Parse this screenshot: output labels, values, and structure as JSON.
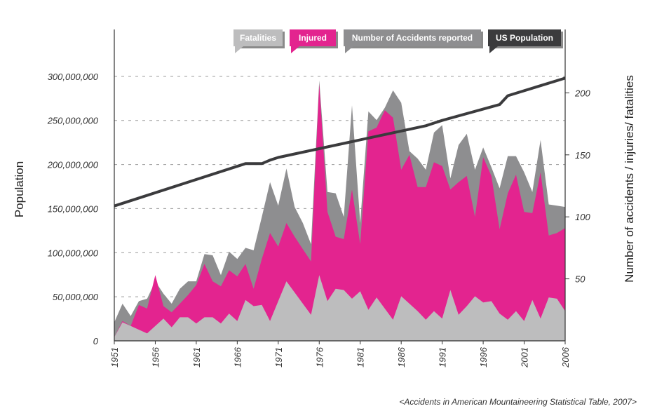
{
  "chart_data": {
    "type": "area",
    "source": "<Accidents in American Mountaineering Statistical Table, 2007>",
    "xlabel": "",
    "ylabel_left": "Population",
    "ylabel_right": "Number of accidents / injuries/ fatalities",
    "x_ticks": [
      "1951",
      "1956",
      "1961",
      "1966",
      "1971",
      "1976",
      "1981",
      "1986",
      "1991",
      "1996",
      "2001",
      "2006"
    ],
    "left_ticks": [
      "0",
      "50,000,000",
      "100,000,000",
      "150,000,000",
      "200,000,000",
      "250,000,000",
      "300,000,000"
    ],
    "left_tick_values": [
      0,
      50000000,
      100000000,
      150000000,
      200000000,
      250000000,
      300000000
    ],
    "right_ticks": [
      "50",
      "100",
      "150",
      "200"
    ],
    "right_tick_values": [
      50,
      100,
      150,
      200
    ],
    "ylim_left": [
      0,
      350000000
    ],
    "ylim_right": [
      0,
      250
    ],
    "legend": [
      "Fatalities",
      "Injured",
      "Number of Accidents reported",
      "US Population"
    ],
    "colors": {
      "fatalities": "#bdbdbe",
      "injured": "#e3248f",
      "accidents": "#8e8e90",
      "population": "#3b3b3d",
      "legend_fatalities": "#bdbdbe",
      "legend_injured": "#e3248f",
      "legend_accidents": "#8e8e90",
      "legend_population": "#3b3b3d"
    },
    "series": [
      {
        "name": "Number of Accidents reported",
        "axis": "right",
        "x": [
          1951,
          1952,
          1953,
          1954,
          1955,
          1956,
          1957,
          1958,
          1959,
          1960,
          1961,
          1962,
          1963,
          1964,
          1965,
          1966,
          1967,
          1968,
          1969,
          1970,
          1971,
          1972,
          1973,
          1974,
          1975,
          1976,
          1977,
          1978,
          1979,
          1980,
          1981,
          1982,
          1983,
          1984,
          1985,
          1986,
          1987,
          1988,
          1989,
          1990,
          1991,
          1992,
          1993,
          1994,
          1995,
          1996,
          1997,
          1998,
          1999,
          2000,
          2001,
          2002,
          2003,
          2004,
          2005,
          2006
        ],
        "values": [
          15,
          30,
          20,
          32,
          34,
          48,
          38,
          30,
          42,
          48,
          48,
          70,
          69,
          53,
          72,
          66,
          75,
          73,
          100,
          128,
          109,
          139,
          108,
          95,
          78,
          210,
          120,
          119,
          100,
          190,
          95,
          185,
          178,
          188,
          202,
          192,
          153,
          147,
          138,
          168,
          174,
          131,
          158,
          167,
          138,
          156,
          140,
          123,
          149,
          149,
          136,
          120,
          162,
          110,
          109,
          108
        ]
      },
      {
        "name": "Injured",
        "axis": "right",
        "x": [
          1951,
          1952,
          1953,
          1954,
          1955,
          1956,
          1957,
          1958,
          1959,
          1960,
          1961,
          1962,
          1963,
          1964,
          1965,
          1966,
          1967,
          1968,
          1969,
          1970,
          1971,
          1972,
          1973,
          1974,
          1975,
          1976,
          1977,
          1978,
          1979,
          1980,
          1981,
          1982,
          1983,
          1984,
          1985,
          1986,
          1987,
          1988,
          1989,
          1990,
          1991,
          1992,
          1993,
          1994,
          1995,
          1996,
          1997,
          1998,
          1999,
          2000,
          2001,
          2002,
          2003,
          2004,
          2005,
          2006
        ],
        "values": [
          3,
          16,
          12,
          29,
          26,
          53,
          28,
          23,
          30,
          37,
          45,
          62,
          48,
          44,
          57,
          52,
          62,
          42,
          66,
          87,
          76,
          95,
          84,
          74,
          64,
          207,
          104,
          84,
          82,
          122,
          78,
          169,
          172,
          186,
          180,
          138,
          150,
          124,
          124,
          144,
          141,
          122,
          128,
          133,
          100,
          148,
          133,
          90,
          119,
          134,
          104,
          103,
          136,
          85,
          87,
          91
        ]
      },
      {
        "name": "Fatalities",
        "axis": "right",
        "x": [
          1951,
          1952,
          1953,
          1954,
          1955,
          1956,
          1957,
          1958,
          1959,
          1960,
          1961,
          1962,
          1963,
          1964,
          1965,
          1966,
          1967,
          1968,
          1969,
          1970,
          1971,
          1972,
          1973,
          1974,
          1975,
          1976,
          1977,
          1978,
          1979,
          1980,
          1981,
          1982,
          1983,
          1984,
          1985,
          1986,
          1987,
          1988,
          1989,
          1990,
          1991,
          1992,
          1993,
          1994,
          1995,
          1996,
          1997,
          1998,
          1999,
          2000,
          2001,
          2002,
          2003,
          2004,
          2005,
          2006
        ],
        "values": [
          3,
          15,
          12,
          9,
          6,
          12,
          18,
          11,
          19,
          19,
          14,
          19,
          19,
          14,
          22,
          16,
          33,
          28,
          29,
          16,
          32,
          48,
          39,
          30,
          21,
          53,
          32,
          42,
          41,
          34,
          40,
          25,
          35,
          26,
          17,
          36,
          30,
          24,
          17,
          24,
          18,
          41,
          21,
          28,
          36,
          31,
          32,
          22,
          17,
          24,
          16,
          33,
          18,
          35,
          34,
          24
        ]
      },
      {
        "name": "US Population",
        "axis": "left",
        "x": [
          1951,
          1967,
          1969,
          1970,
          1971,
          1989,
          1990,
          1991,
          1998,
          1999,
          2006
        ],
        "values": [
          153000000,
          201000000,
          201000000,
          205000000,
          208000000,
          244000000,
          247000000,
          250000000,
          268000000,
          278000000,
          298000000
        ]
      }
    ]
  }
}
